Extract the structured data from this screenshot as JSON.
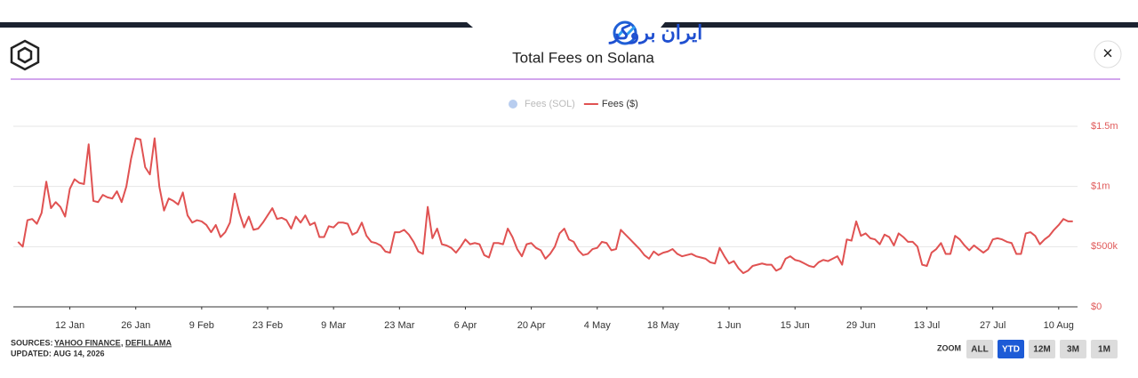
{
  "header": {
    "logo": "ایران بروکر",
    "close": "×"
  },
  "chart_data": {
    "type": "line",
    "title": "Total Fees on Solana",
    "x": [
      1,
      2,
      3,
      4,
      5,
      6,
      7,
      8,
      9,
      10,
      11,
      12,
      13,
      14,
      15,
      16,
      17,
      18,
      19,
      20,
      21,
      22,
      23,
      24,
      25,
      26,
      27,
      28,
      29,
      30,
      31,
      32,
      33,
      34,
      35,
      36,
      37,
      38,
      39,
      40,
      41,
      42,
      43,
      44,
      45,
      46,
      47,
      48,
      49,
      50,
      51,
      52,
      53,
      54,
      55,
      56,
      57,
      58,
      59,
      60,
      61,
      62,
      63,
      64,
      65,
      66,
      67,
      68,
      69,
      70,
      71,
      72,
      73,
      74,
      75,
      76,
      77,
      78,
      79,
      80,
      81,
      82,
      83,
      84,
      85,
      86,
      87,
      88,
      89,
      90,
      91,
      92,
      93,
      94,
      95,
      96,
      97,
      98,
      99,
      100,
      101,
      102,
      103,
      104,
      105,
      106,
      107,
      108,
      109,
      110,
      111,
      112,
      113,
      114,
      115,
      116,
      117,
      118,
      119,
      120,
      121,
      122,
      123,
      124,
      125,
      126,
      127,
      128,
      129,
      130,
      131,
      132,
      133,
      134,
      135,
      136,
      137,
      138,
      139,
      140,
      141,
      142,
      143,
      144,
      145,
      146,
      147,
      148,
      149,
      150,
      151,
      152,
      153,
      154,
      155,
      156,
      157,
      158,
      159,
      160,
      161,
      162,
      163,
      164,
      165,
      166,
      167,
      168,
      169,
      170,
      171,
      172,
      173,
      174,
      175,
      176,
      177,
      178,
      179,
      180,
      181,
      182,
      183,
      184,
      185,
      186,
      187,
      188,
      189,
      190,
      191,
      192,
      193,
      194,
      195,
      196,
      197,
      198,
      199,
      200,
      201,
      202,
      203,
      204,
      205,
      206,
      207,
      208,
      209,
      210,
      211,
      212,
      213,
      214,
      215,
      216,
      217,
      218,
      219,
      220,
      221,
      222,
      223,
      224,
      225
    ],
    "series": [
      {
        "name": "Fees ($)",
        "color": "#e05252",
        "values": [
          540,
          500,
          720,
          730,
          690,
          780,
          1040,
          820,
          870,
          830,
          750,
          980,
          1060,
          1030,
          1020,
          1350,
          880,
          870,
          930,
          910,
          900,
          960,
          870,
          1000,
          1230,
          1400,
          1390,
          1160,
          1100,
          1400,
          1000,
          800,
          900,
          880,
          850,
          950,
          760,
          700,
          720,
          710,
          680,
          620,
          680,
          580,
          620,
          700,
          940,
          780,
          660,
          750,
          640,
          650,
          700,
          760,
          820,
          730,
          740,
          720,
          650,
          750,
          700,
          760,
          680,
          700,
          580,
          580,
          670,
          660,
          700,
          700,
          690,
          600,
          620,
          700,
          590,
          540,
          530,
          510,
          460,
          450,
          620,
          620,
          640,
          600,
          540,
          460,
          440,
          830,
          570,
          650,
          520,
          510,
          490,
          450,
          500,
          560,
          520,
          530,
          520,
          430,
          410,
          530,
          530,
          520,
          650,
          580,
          480,
          420,
          520,
          530,
          490,
          470,
          400,
          440,
          500,
          610,
          650,
          560,
          540,
          470,
          430,
          440,
          480,
          490,
          540,
          530,
          470,
          480,
          640,
          600,
          560,
          520,
          480,
          430,
          400,
          460,
          430,
          450,
          460,
          480,
          440,
          420,
          430,
          440,
          420,
          410,
          400,
          370,
          360,
          490,
          420,
          360,
          380,
          320,
          280,
          300,
          340,
          350,
          360,
          350,
          350,
          300,
          320,
          400,
          420,
          390,
          380,
          360,
          340,
          330,
          370,
          390,
          380,
          400,
          420,
          350,
          560,
          550,
          710,
          590,
          610,
          570,
          560,
          520,
          600,
          580,
          510,
          610,
          580,
          540,
          540,
          500,
          350,
          340,
          450,
          480,
          530,
          440,
          440,
          590,
          560,
          510,
          470,
          510,
          480,
          450,
          480,
          560,
          570,
          560,
          540,
          530,
          440,
          440,
          610,
          620,
          590,
          520,
          560,
          590,
          640,
          680,
          730,
          710,
          710
        ]
      }
    ],
    "hidden_series": [
      {
        "name": "Fees (SOL)",
        "color": "#b8cdef"
      }
    ],
    "xlim": [
      0,
      226
    ],
    "xticks": [
      {
        "value": 12,
        "label": "12 Jan"
      },
      {
        "value": 26,
        "label": "26 Jan"
      },
      {
        "value": 40,
        "label": "9 Feb"
      },
      {
        "value": 54,
        "label": "23 Feb"
      },
      {
        "value": 68,
        "label": "9 Mar"
      },
      {
        "value": 82,
        "label": "23 Mar"
      },
      {
        "value": 96,
        "label": "6 Apr"
      },
      {
        "value": 110,
        "label": "20 Apr"
      },
      {
        "value": 124,
        "label": "4 May"
      },
      {
        "value": 138,
        "label": "18 May"
      },
      {
        "value": 152,
        "label": "1 Jun"
      },
      {
        "value": 166,
        "label": "15 Jun"
      },
      {
        "value": 180,
        "label": "29 Jun"
      },
      {
        "value": 194,
        "label": "13 Jul"
      },
      {
        "value": 208,
        "label": "27 Jul"
      },
      {
        "value": 222,
        "label": "10 Aug"
      }
    ],
    "ylim": [
      0,
      1500
    ],
    "yticks": [
      {
        "value": 0,
        "label": "$0"
      },
      {
        "value": 500,
        "label": "$500k"
      },
      {
        "value": 1000,
        "label": "$1m"
      },
      {
        "value": 1500,
        "label": "$1.5m"
      }
    ],
    "grid": true
  },
  "footer": {
    "sources_label": "SOURCES:",
    "sources": [
      "YAHOO FINANCE",
      "DEFILLAMA"
    ],
    "separator": ",",
    "updated": "UPDATED: AUG 14, 2026"
  },
  "zoom": {
    "label": "ZOOM",
    "buttons": [
      "ALL",
      "YTD",
      "12M",
      "3M",
      "1M"
    ],
    "active": 1
  }
}
